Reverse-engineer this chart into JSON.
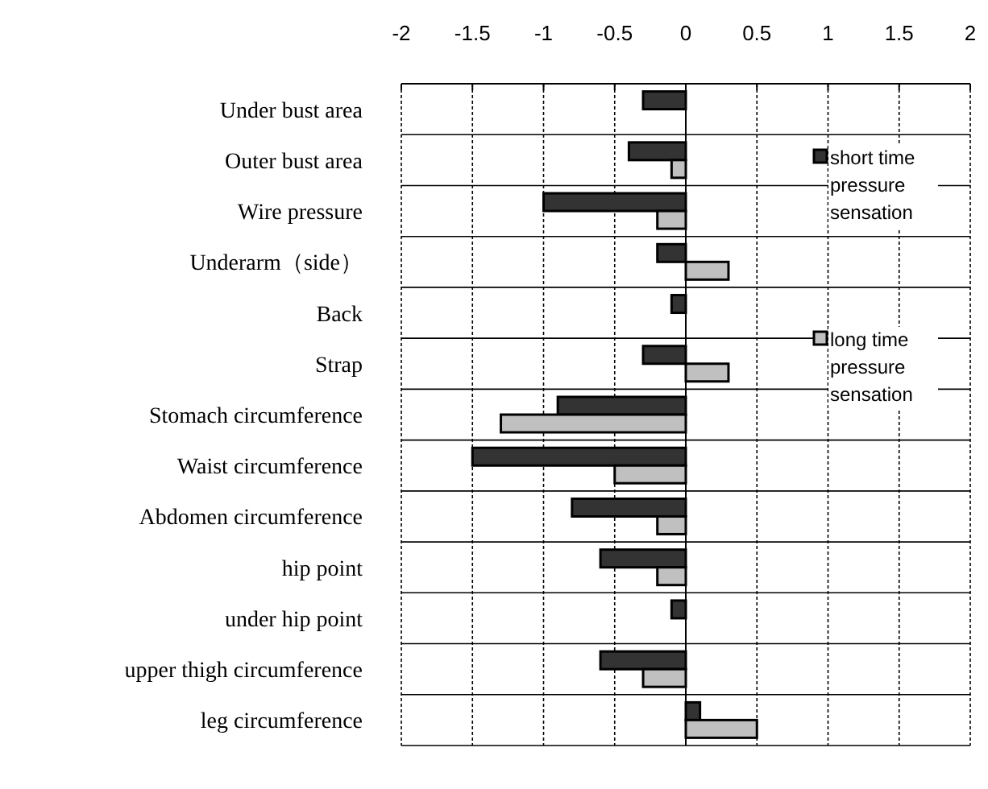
{
  "chart_data": {
    "type": "bar",
    "orientation": "horizontal",
    "categories": [
      "Under bust area",
      "Outer bust area",
      "Wire pressure",
      "Underarm（side）",
      "Back",
      "Strap",
      "Stomach circumference",
      "Waist circumference",
      "Abdomen circumference",
      "hip point",
      "under hip point",
      "upper thigh circumference",
      "leg circumference"
    ],
    "series": [
      {
        "name": "short time pressure sensation",
        "color": "#333333",
        "values": [
          -0.3,
          -0.4,
          -1.0,
          -0.2,
          -0.1,
          -0.3,
          -0.9,
          -1.5,
          -0.8,
          -0.6,
          -0.1,
          -0.6,
          0.1
        ]
      },
      {
        "name": "long time pressure sensation",
        "color": "#c0c0c0",
        "values": [
          null,
          -0.1,
          -0.2,
          0.3,
          null,
          0.3,
          -1.3,
          -0.5,
          -0.2,
          -0.2,
          null,
          -0.3,
          0.5
        ]
      }
    ],
    "xlim": [
      -2,
      2
    ],
    "xticks": [
      -2,
      -1.5,
      -1,
      -0.5,
      0,
      0.5,
      1,
      1.5,
      2
    ],
    "grid": true,
    "legend": "right"
  }
}
